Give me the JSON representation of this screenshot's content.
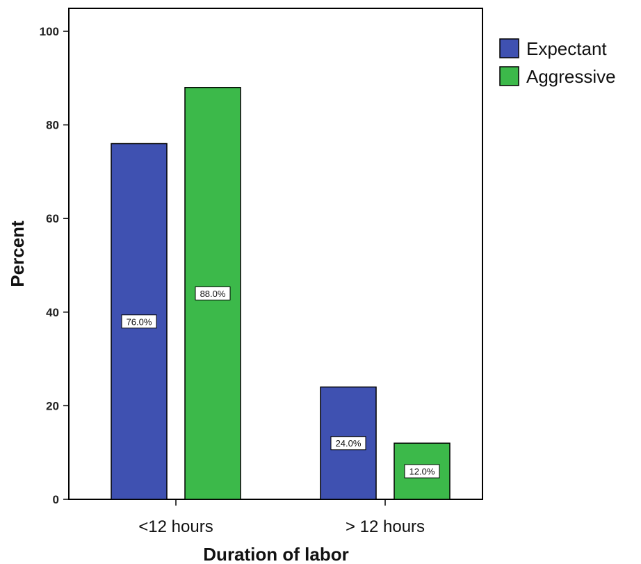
{
  "chart_data": {
    "type": "bar",
    "categories": [
      "<12 hours",
      "> 12 hours"
    ],
    "series": [
      {
        "name": "Expectant",
        "values": [
          76.0,
          24.0
        ],
        "labels": [
          "76.0%",
          "24.0%"
        ],
        "color": "#3F51B1"
      },
      {
        "name": "Aggressive",
        "values": [
          88.0,
          12.0
        ],
        "labels": [
          "88.0%",
          "12.0%"
        ],
        "color": "#3CB94A"
      }
    ],
    "title": "",
    "xlabel": "Duration of labor",
    "ylabel": "Percent",
    "ylim": [
      0,
      100
    ],
    "yticks": [
      "0",
      "20",
      "40",
      "60",
      "80",
      "100"
    ],
    "grid": false,
    "legend_position": "top-right, outside plot"
  }
}
